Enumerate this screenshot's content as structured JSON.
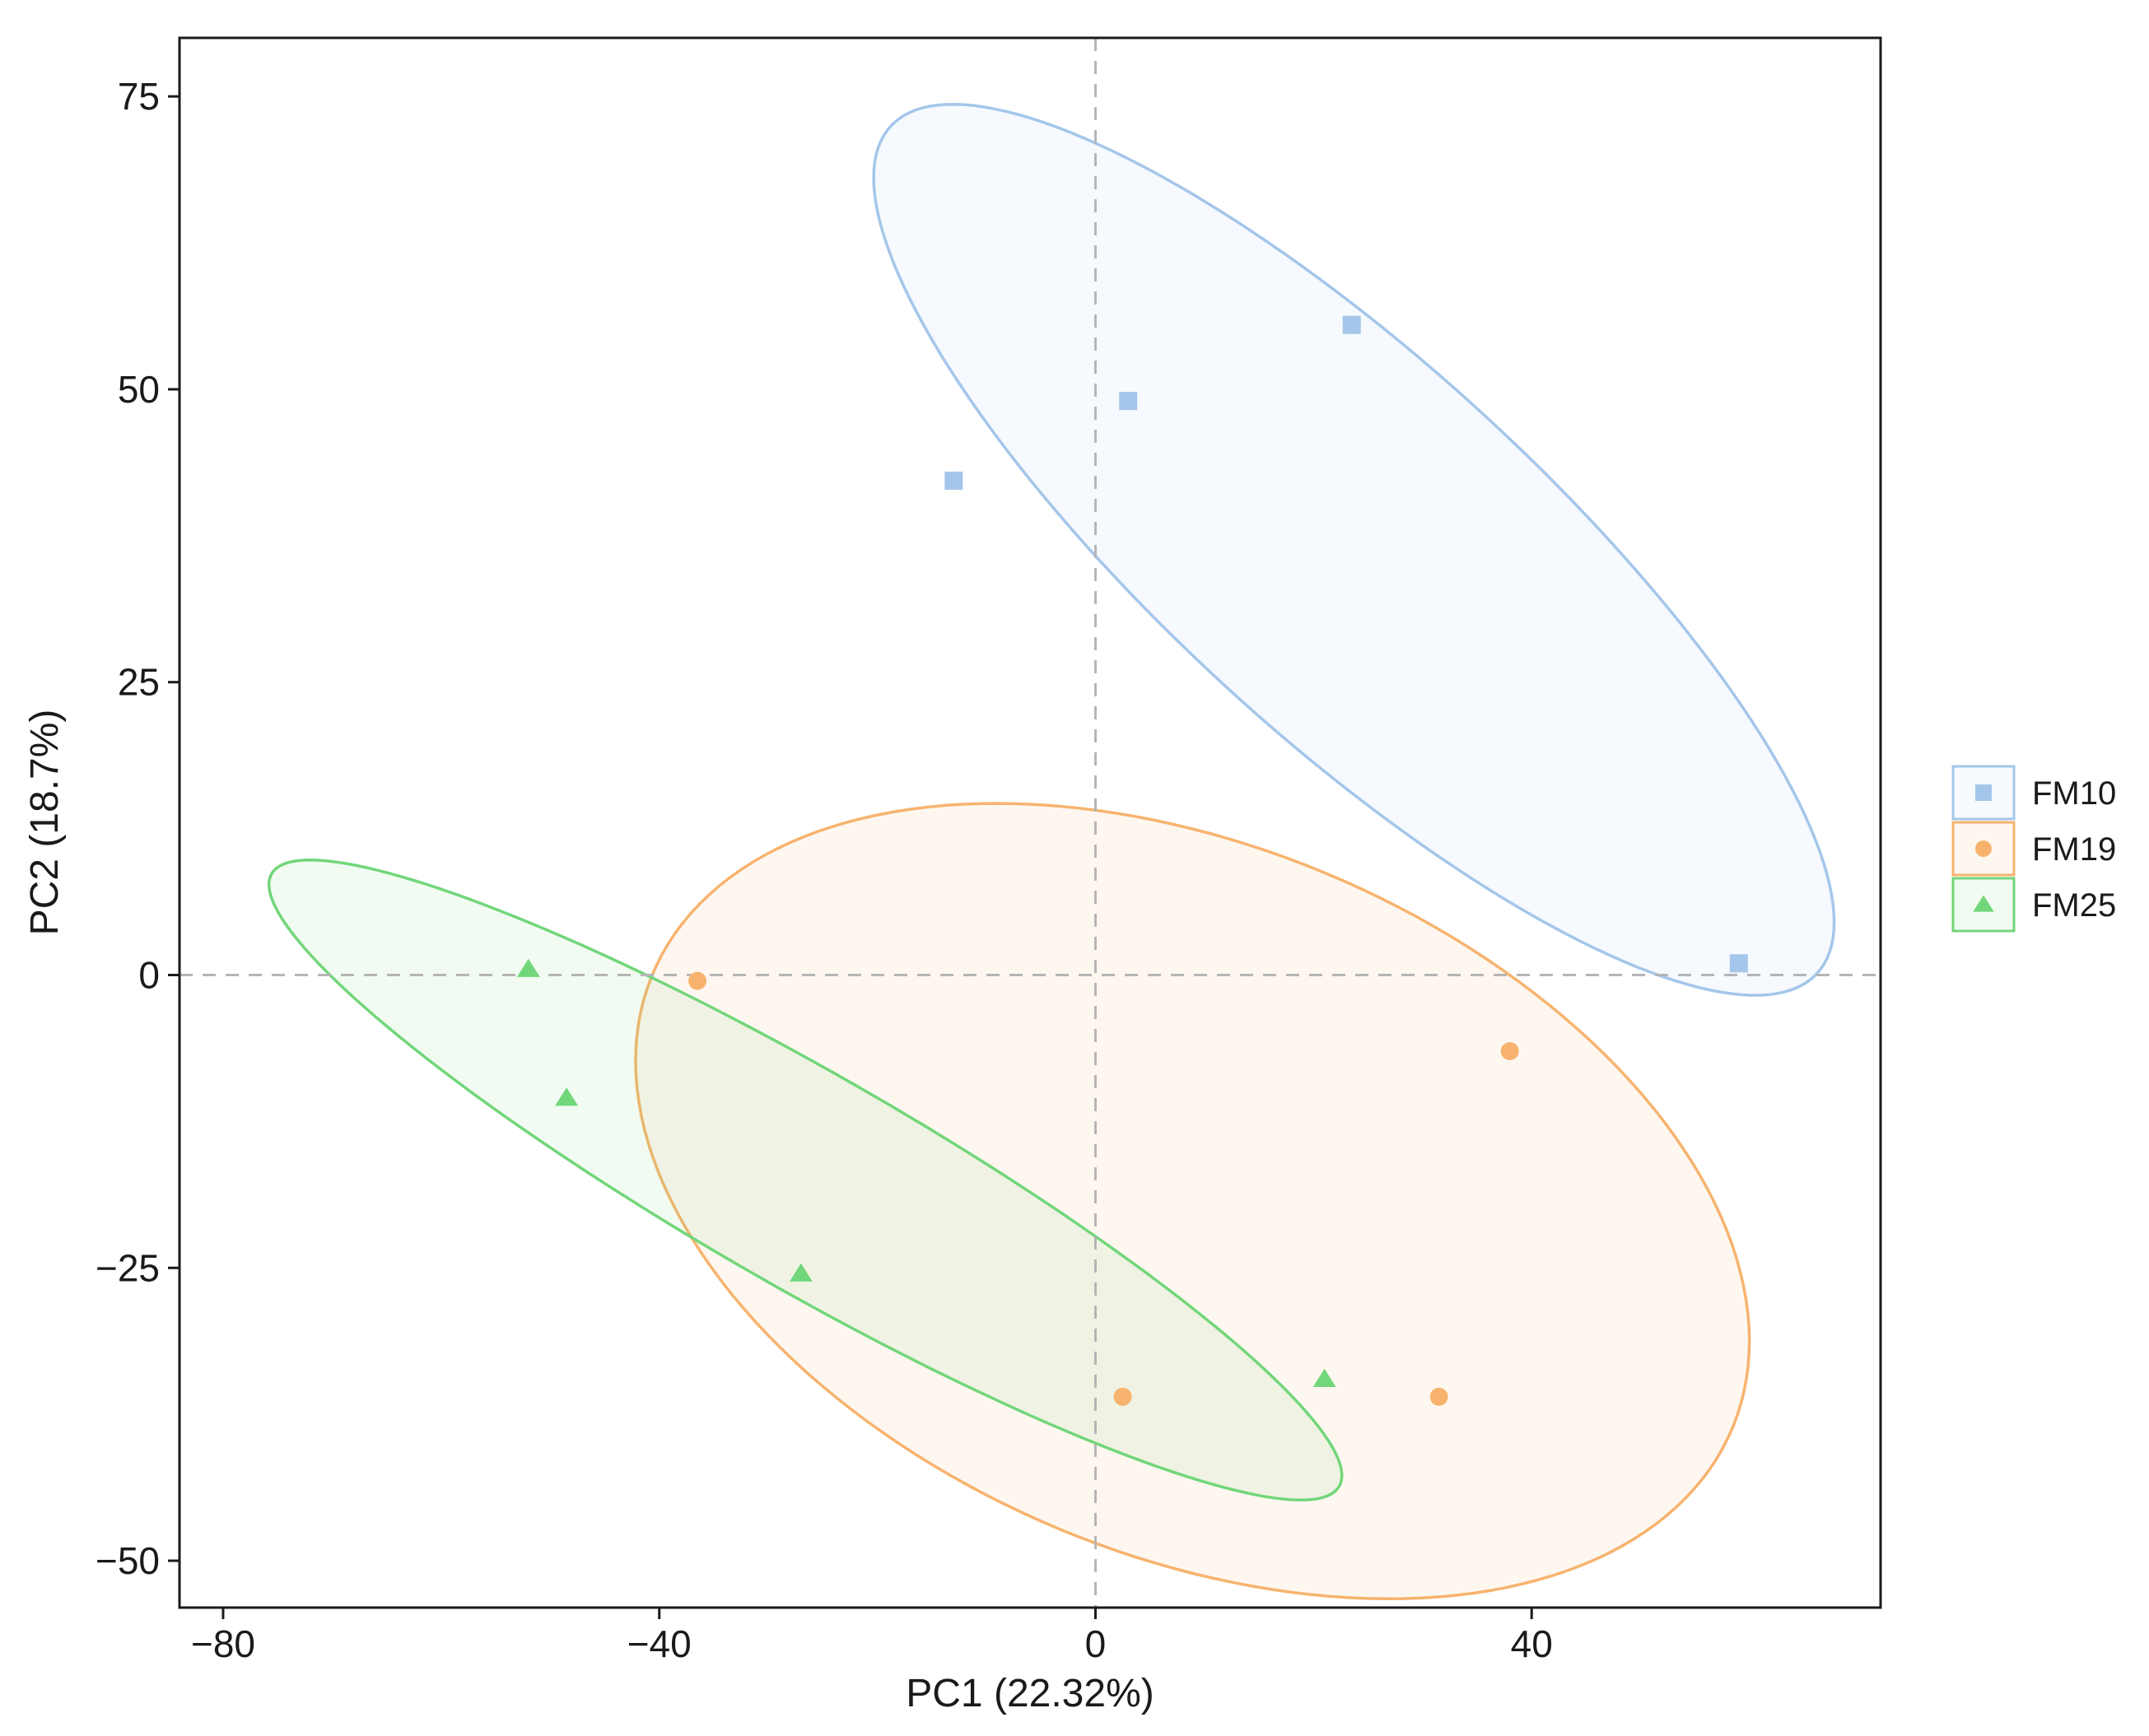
{
  "chart_data": {
    "type": "scatter",
    "xlabel": "PC1 (22.32%)",
    "ylabel": "PC2 (18.7%)",
    "xlim": [
      -84,
      72
    ],
    "ylim": [
      -54,
      80
    ],
    "x_ticks": [
      -80,
      -40,
      0,
      40
    ],
    "y_ticks": [
      75,
      50,
      25,
      0,
      -25,
      -50
    ],
    "x_tick_labels": [
      "−80",
      "−40",
      "0",
      "40"
    ],
    "y_tick_labels": [
      "75",
      "50",
      "25",
      "0",
      "−25",
      "−50"
    ],
    "reference_lines": {
      "x": 0,
      "y": 0,
      "style": "dashed"
    },
    "grid": false,
    "legend_position": "right",
    "series": [
      {
        "name": "FM10",
        "marker": "square",
        "color": "#a4c6ea",
        "points": [
          {
            "x": -13,
            "y": 42.2
          },
          {
            "x": 3,
            "y": 49
          },
          {
            "x": 23.5,
            "y": 55.5
          },
          {
            "x": 59,
            "y": 1
          }
        ],
        "ellipse": {
          "cx": 23.7,
          "cy": 36.3,
          "a": 55.8,
          "b": 16.5,
          "angle_deg": -40
        }
      },
      {
        "name": "FM19",
        "marker": "circle",
        "color": "#f7b36e",
        "points": [
          {
            "x": -36.5,
            "y": -0.5
          },
          {
            "x": 38,
            "y": -6.5
          },
          {
            "x": 2.5,
            "y": -36
          },
          {
            "x": 31.5,
            "y": -36
          }
        ],
        "ellipse": {
          "cx": 8.9,
          "cy": -19.3,
          "a": 53.2,
          "b": 30.5,
          "angle_deg": -20
        }
      },
      {
        "name": "FM25",
        "marker": "triangle",
        "color": "#72d67a",
        "points": [
          {
            "x": -52,
            "y": 0.5
          },
          {
            "x": -48.5,
            "y": -10.5
          },
          {
            "x": -27,
            "y": -25.5
          },
          {
            "x": 21,
            "y": -34.5
          }
        ],
        "ellipse": {
          "cx": -26.6,
          "cy": -17.5,
          "a": 55.5,
          "b": 9.3,
          "angle_deg": -28
        }
      }
    ]
  }
}
